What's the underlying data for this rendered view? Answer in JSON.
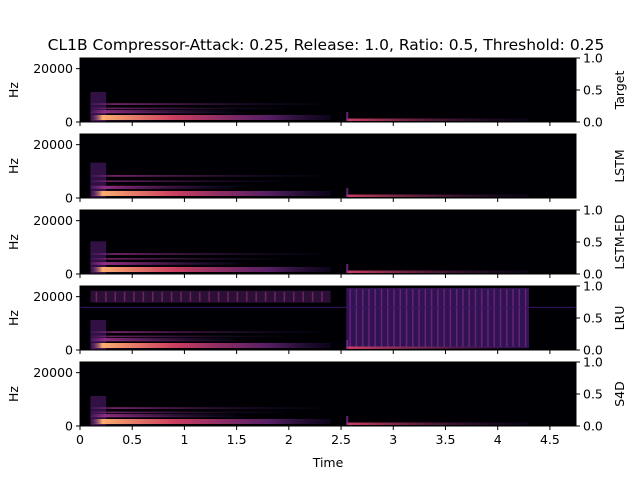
{
  "colors": {
    "background": "#000004",
    "low": "#1a0f3a",
    "mid": "#7a2a8e",
    "high": "#e0456a",
    "peak": "#fcae6f",
    "axis": "#000000"
  },
  "chart_data": {
    "type": "heatmap",
    "title": "CL1B Compressor-Attack: 0.25, Release: 1.0, Ratio: 0.5, Threshold: 0.25",
    "xlabel": "Time",
    "xlim": [
      0,
      4.75
    ],
    "x_ticks": [
      "0",
      "0.5",
      "1",
      "1.5",
      "2",
      "2.5",
      "3",
      "3.5",
      "4",
      "4.5"
    ],
    "x_tick_values": [
      0,
      0.5,
      1,
      1.5,
      2,
      2.5,
      3,
      3.5,
      4,
      4.5
    ],
    "ylabel": "Hz",
    "ylim": [
      0,
      24000
    ],
    "y_ticks": [
      "0",
      "20000"
    ],
    "y_tick_values": [
      0,
      20000
    ],
    "right_ylim": [
      0,
      1
    ],
    "right_ticks": [
      "0.0",
      "0.5",
      "1.0"
    ],
    "colormap": "magma",
    "panels": [
      {
        "name": "Target",
        "show_right_ticks": true,
        "events": [
          {
            "start": 0.1,
            "end": 2.4,
            "max_freq": 9000
          },
          {
            "start": 2.55,
            "end": 4.3,
            "max_freq": 3000
          }
        ],
        "high_band": false
      },
      {
        "name": "LSTM",
        "show_right_ticks": false,
        "events": [
          {
            "start": 0.1,
            "end": 2.4,
            "max_freq": 11000
          },
          {
            "start": 2.55,
            "end": 4.3,
            "max_freq": 3000
          }
        ],
        "high_band": false
      },
      {
        "name": "LSTM-ED",
        "show_right_ticks": true,
        "events": [
          {
            "start": 0.1,
            "end": 2.4,
            "max_freq": 10000
          },
          {
            "start": 2.55,
            "end": 4.3,
            "max_freq": 3000
          }
        ],
        "high_band": false
      },
      {
        "name": "LRU",
        "show_right_ticks": true,
        "events": [
          {
            "start": 0.1,
            "end": 2.4,
            "max_freq": 9000
          },
          {
            "start": 2.55,
            "end": 4.3,
            "max_freq": 3000
          }
        ],
        "high_band": true
      },
      {
        "name": "S4D",
        "show_right_ticks": true,
        "events": [
          {
            "start": 0.1,
            "end": 2.4,
            "max_freq": 9000
          },
          {
            "start": 2.55,
            "end": 4.3,
            "max_freq": 3000
          }
        ],
        "high_band": false
      }
    ]
  }
}
